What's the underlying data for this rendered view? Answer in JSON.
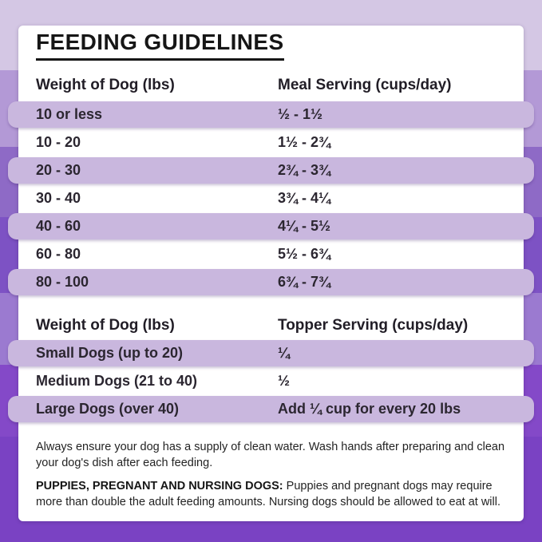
{
  "title": "FEEDING GUIDELINES",
  "meal_table": {
    "col1": "Weight of Dog (lbs)",
    "col2": "Meal Serving (cups/day)",
    "rows": [
      {
        "weight": "10 or less",
        "serving": "½ - 1½"
      },
      {
        "weight": "10 - 20",
        "serving": "1½ - 2¾"
      },
      {
        "weight": "20 - 30",
        "serving": "2¾ - 3¾"
      },
      {
        "weight": "30 - 40",
        "serving": "3¾ - 4¼"
      },
      {
        "weight": "40 - 60",
        "serving": "4¼ - 5½"
      },
      {
        "weight": "60 - 80",
        "serving": "5½ - 6¾"
      },
      {
        "weight": "80 - 100",
        "serving": "6¾ - 7¾"
      }
    ]
  },
  "topper_table": {
    "col1": "Weight of Dog (lbs)",
    "col2": "Topper Serving (cups/day)",
    "rows": [
      {
        "weight": "Small Dogs (up to 20)",
        "serving": "¼"
      },
      {
        "weight": "Medium Dogs (21 to 40)",
        "serving": "½"
      },
      {
        "weight": "Large Dogs (over 40)",
        "serving": "Add ¼ cup for every 20 lbs"
      }
    ]
  },
  "notes": {
    "water": "Always ensure your dog has a supply of clean water. Wash hands after preparing and clean your dog's dish after each feeding.",
    "puppies_label": "PUPPIES, PREGNANT AND NURSING DOGS:",
    "puppies_text": " Puppies and pregnant dogs may require more than double the adult feeding amounts. Nursing dogs should be allowed to eat at will."
  },
  "colors": {
    "row_stripe": "#c9b7de",
    "text": "#2b2630",
    "title": "#161616",
    "card_background": "#ffffff",
    "background_bands": [
      "#d4c7e4",
      "#b399d6",
      "#8e6ac6",
      "#7d52c4",
      "#9b7ad0",
      "#8449c8",
      "#7a42c3"
    ]
  }
}
